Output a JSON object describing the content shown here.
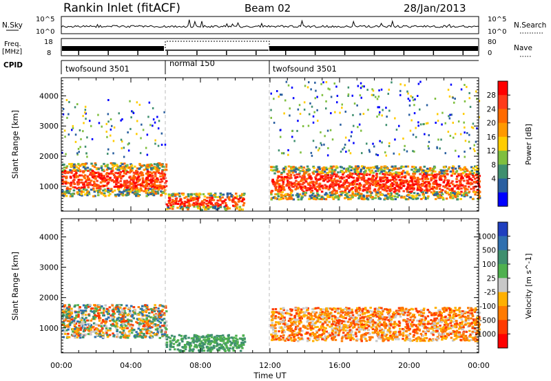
{
  "header": {
    "title": "Rankin Inlet (fitACF)",
    "beam": "Beam 02",
    "date": "28/Jan/2013"
  },
  "params": {
    "nsky_label": "N.Sky",
    "nsky_ticks": [
      "10^5",
      "10^0"
    ],
    "nsearch_label": "N.Search",
    "freq_label": "Freq.",
    "freq_unit": "[MHz]",
    "freq_ticks": [
      "18",
      "8"
    ],
    "nave_ticks": [
      "80",
      "0"
    ],
    "nave_label": "Nave",
    "cpid_label": "CPID",
    "cpid_segments": [
      {
        "name": "twofsound 3501",
        "start": 0,
        "end": 6
      },
      {
        "name": "normal 150",
        "start": 6,
        "end": 12
      },
      {
        "name": "twofsound 3501",
        "start": 12,
        "end": 24
      }
    ]
  },
  "chart_data": [
    {
      "type": "heatmap",
      "panel": "power",
      "xlabel": "",
      "ylabel": "Slant Range [km]",
      "xlim": [
        0,
        24
      ],
      "ylim": [
        180,
        4600
      ],
      "yticks": [
        "1000",
        "2000",
        "3000",
        "4000"
      ],
      "colorbar": {
        "label": "Power [dB]",
        "ticks": [
          "28",
          "24",
          "20",
          "16",
          "12",
          "8",
          "4"
        ],
        "colors": [
          "#ff0000",
          "#ff3a1a",
          "#ff6a00",
          "#ff9900",
          "#ffcc00",
          "#7fbf3f",
          "#3f8f6f",
          "#2a5fa0",
          "#0000ff"
        ]
      },
      "regions": [
        {
          "x": [
            0,
            6
          ],
          "y": [
            700,
            1800
          ],
          "level": "high"
        },
        {
          "x": [
            6,
            10.5
          ],
          "y": [
            250,
            800
          ],
          "level": "high"
        },
        {
          "x": [
            12,
            24
          ],
          "y": [
            600,
            1700
          ],
          "level": "high"
        },
        {
          "x": [
            0,
            6
          ],
          "y": [
            2000,
            3900
          ],
          "level": "low"
        },
        {
          "x": [
            12,
            24
          ],
          "y": [
            2000,
            4500
          ],
          "level": "low"
        }
      ]
    },
    {
      "type": "heatmap",
      "panel": "velocity",
      "xlabel": "Time UT",
      "ylabel": "Slant Range [km]",
      "xlim": [
        0,
        24
      ],
      "ylim": [
        180,
        4600
      ],
      "xticks": [
        "00:00",
        "04:00",
        "08:00",
        "12:00",
        "16:00",
        "20:00",
        "00:00"
      ],
      "yticks": [
        "1000",
        "2000",
        "3000",
        "4000"
      ],
      "colorbar": {
        "label": "Velocity [m s^-1]",
        "ticks": [
          "1000",
          "500",
          "100",
          "25",
          "-25",
          "-100",
          "-500",
          "-1000"
        ],
        "colors": [
          "#1f3fbf",
          "#2f6faf",
          "#3f8f6f",
          "#4fb04f",
          "#c8c8c8",
          "#ffb000",
          "#ff7a00",
          "#ff3a00",
          "#ff0000"
        ]
      },
      "regions": [
        {
          "x": [
            0,
            6
          ],
          "y": [
            700,
            1800
          ],
          "level": "mixed"
        },
        {
          "x": [
            6,
            10.5
          ],
          "y": [
            250,
            800
          ],
          "level": "green"
        },
        {
          "x": [
            12,
            24
          ],
          "y": [
            600,
            1700
          ],
          "level": "orange"
        }
      ]
    }
  ]
}
